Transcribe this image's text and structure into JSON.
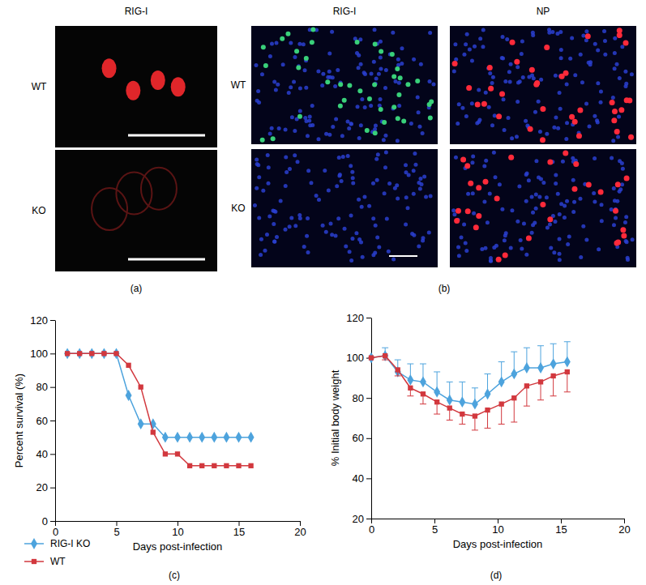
{
  "image_panels": [
    {
      "label": "(a)",
      "column_titles": [
        "RIG-I"
      ],
      "row_labels": [
        "WT",
        "KO"
      ]
    },
    {
      "label": "(b)",
      "column_titles": [
        "RIG-I",
        "NP"
      ],
      "row_labels": [
        "WT",
        "KO"
      ]
    }
  ],
  "chart_data": [
    {
      "type": "line",
      "title": "(c)",
      "x_label": "Days post-infection",
      "y_label": "Percent survival (%)",
      "x": [
        1,
        2,
        3,
        4,
        5,
        6,
        7,
        8,
        9,
        10,
        11,
        12,
        13,
        14,
        15,
        16
      ],
      "series": [
        {
          "name": "RIG-I KO",
          "color": "#4da3dd",
          "marker": "diamond",
          "values": [
            100,
            100,
            100,
            100,
            100,
            75,
            58,
            58,
            50,
            50,
            50,
            50,
            50,
            50,
            50,
            50
          ]
        },
        {
          "name": "WT",
          "color": "#d2383e",
          "marker": "square",
          "values": [
            100,
            100,
            100,
            100,
            100,
            93,
            80,
            53,
            40,
            40,
            33,
            33,
            33,
            33,
            33,
            33
          ]
        }
      ],
      "xlim": [
        0,
        20
      ],
      "xticks": [
        0,
        5,
        10,
        15,
        20
      ],
      "ylim": [
        0,
        120
      ],
      "yticks": [
        0,
        20,
        40,
        60,
        80,
        100,
        120
      ],
      "grid": false,
      "legend": "bottom"
    },
    {
      "type": "line",
      "title": "(d)",
      "x_label": "Days post-infection",
      "y_label": "% Initial body weight",
      "x": [
        0,
        1.1,
        2.1,
        3.1,
        4.1,
        5.2,
        6.2,
        7.2,
        8.2,
        9.2,
        10.3,
        11.3,
        12.3,
        13.4,
        14.4,
        15.5
      ],
      "series": [
        {
          "color": "#4da3dd",
          "marker": "diamond",
          "values": [
            100,
            101,
            93,
            89,
            88,
            83,
            79,
            78,
            77,
            82,
            88,
            92,
            95,
            95,
            97,
            98
          ],
          "errors": [
            0,
            4,
            6,
            8,
            9,
            10,
            9,
            10,
            8,
            10,
            10,
            11,
            10,
            11,
            10,
            10
          ]
        },
        {
          "color": "#d2383e",
          "marker": "square",
          "values": [
            100,
            101,
            94,
            85,
            82,
            78,
            75,
            72,
            71,
            74,
            77,
            80,
            86,
            88,
            91,
            93
          ],
          "errors": [
            0,
            2,
            3,
            4,
            5,
            6,
            6,
            5,
            7,
            9,
            10,
            12,
            10,
            9,
            10,
            10
          ]
        }
      ],
      "xlim": [
        0,
        20
      ],
      "xticks": [
        0,
        5,
        10,
        15,
        20
      ],
      "ylim": [
        20,
        120
      ],
      "yticks": [
        20,
        40,
        60,
        80,
        100,
        120
      ],
      "grid": false
    }
  ]
}
